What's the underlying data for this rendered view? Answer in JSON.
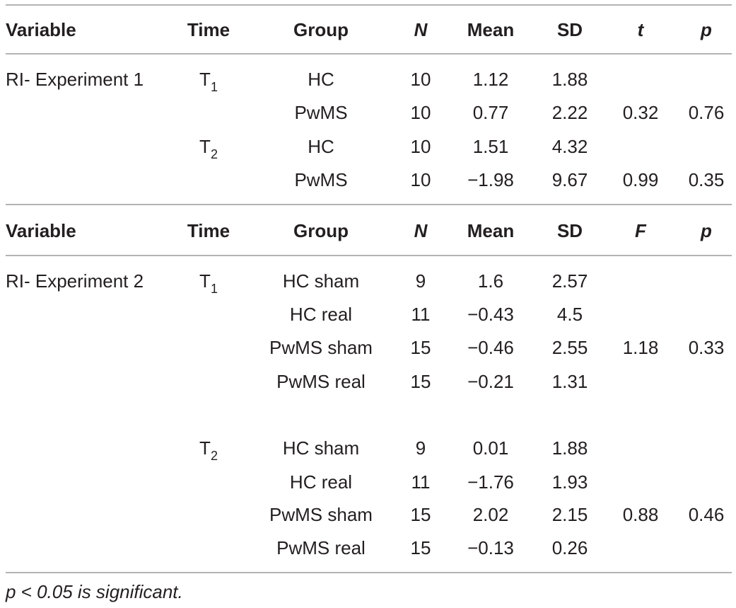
{
  "header1": {
    "variable": "Variable",
    "time": "Time",
    "group": "Group",
    "n": "N",
    "mean": "Mean",
    "sd": "SD",
    "stat": "t",
    "p": "p"
  },
  "exp1": {
    "label": "RI- Experiment 1",
    "t1": {
      "base": "T",
      "sub": "1"
    },
    "t2": {
      "base": "T",
      "sub": "2"
    },
    "rows": [
      {
        "group": "HC",
        "n": "10",
        "mean": "1.12",
        "sd": "1.88",
        "stat": "",
        "p": ""
      },
      {
        "group": "PwMS",
        "n": "10",
        "mean": "0.77",
        "sd": "2.22",
        "stat": "0.32",
        "p": "0.76"
      },
      {
        "group": "HC",
        "n": "10",
        "mean": "1.51",
        "sd": "4.32",
        "stat": "",
        "p": ""
      },
      {
        "group": "PwMS",
        "n": "10",
        "mean": "−1.98",
        "sd": "9.67",
        "stat": "0.99",
        "p": "0.35"
      }
    ]
  },
  "header2": {
    "variable": "Variable",
    "time": "Time",
    "group": "Group",
    "n": "N",
    "mean": "Mean",
    "sd": "SD",
    "stat": "F",
    "p": "p"
  },
  "exp2": {
    "label": "RI- Experiment 2",
    "t1": {
      "base": "T",
      "sub": "1"
    },
    "t2": {
      "base": "T",
      "sub": "2"
    },
    "rows": [
      {
        "group": "HC sham",
        "n": "9",
        "mean": "1.6",
        "sd": "2.57",
        "stat": "",
        "p": ""
      },
      {
        "group": "HC real",
        "n": "11",
        "mean": "−0.43",
        "sd": "4.5",
        "stat": "",
        "p": ""
      },
      {
        "group": "PwMS sham",
        "n": "15",
        "mean": "−0.46",
        "sd": "2.55",
        "stat": "1.18",
        "p": "0.33"
      },
      {
        "group": "PwMS real",
        "n": "15",
        "mean": "−0.21",
        "sd": "1.31",
        "stat": "",
        "p": ""
      },
      {
        "group": "HC sham",
        "n": "9",
        "mean": "0.01",
        "sd": "1.88",
        "stat": "",
        "p": ""
      },
      {
        "group": "HC real",
        "n": "11",
        "mean": "−1.76",
        "sd": "1.93",
        "stat": "",
        "p": ""
      },
      {
        "group": "PwMS sham",
        "n": "15",
        "mean": "2.02",
        "sd": "2.15",
        "stat": "0.88",
        "p": "0.46"
      },
      {
        "group": "PwMS real",
        "n": "15",
        "mean": "−0.13",
        "sd": "0.26",
        "stat": "",
        "p": ""
      }
    ]
  },
  "footnote": "p < 0.05 is significant."
}
